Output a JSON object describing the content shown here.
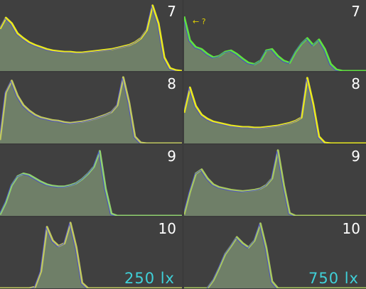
{
  "chart_data": [
    {
      "type": "area",
      "id": "L7",
      "label": "7",
      "light": "250 lx",
      "series_color": "#e8e820",
      "values": [
        0.62,
        0.78,
        0.7,
        0.55,
        0.48,
        0.42,
        0.38,
        0.35,
        0.32,
        0.3,
        0.29,
        0.28,
        0.28,
        0.27,
        0.27,
        0.28,
        0.29,
        0.3,
        0.31,
        0.32,
        0.34,
        0.36,
        0.38,
        0.42,
        0.48,
        0.6,
        0.96,
        0.7,
        0.2,
        0.04,
        0.01,
        0.0
      ]
    },
    {
      "type": "area",
      "id": "R7",
      "label": "7",
      "light": "750 lx",
      "annotation": "← ?",
      "series_color": "#60e040",
      "values": [
        0.8,
        0.45,
        0.35,
        0.32,
        0.25,
        0.2,
        0.22,
        0.28,
        0.3,
        0.25,
        0.18,
        0.12,
        0.1,
        0.15,
        0.3,
        0.32,
        0.22,
        0.15,
        0.12,
        0.28,
        0.4,
        0.48,
        0.38,
        0.46,
        0.32,
        0.1,
        0.02,
        0.0,
        0.0,
        0.0,
        0.0,
        0.0
      ]
    },
    {
      "type": "area",
      "id": "L8",
      "label": "8",
      "light": "250 lx",
      "series_color": "#c0c860",
      "values": [
        0.05,
        0.75,
        0.92,
        0.7,
        0.56,
        0.48,
        0.42,
        0.38,
        0.36,
        0.34,
        0.33,
        0.31,
        0.3,
        0.31,
        0.32,
        0.34,
        0.36,
        0.39,
        0.42,
        0.46,
        0.56,
        0.97,
        0.6,
        0.1,
        0.01,
        0.0,
        0.0,
        0.0,
        0.0,
        0.0,
        0.0,
        0.0
      ]
    },
    {
      "type": "area",
      "id": "R8",
      "label": "8",
      "light": "750 lx",
      "series_color": "#e8e820",
      "values": [
        0.45,
        0.82,
        0.55,
        0.42,
        0.36,
        0.32,
        0.3,
        0.28,
        0.26,
        0.25,
        0.24,
        0.24,
        0.23,
        0.23,
        0.24,
        0.25,
        0.26,
        0.28,
        0.3,
        0.33,
        0.38,
        0.96,
        0.58,
        0.1,
        0.01,
        0.0,
        0.0,
        0.0,
        0.0,
        0.0,
        0.0,
        0.0
      ]
    },
    {
      "type": "area",
      "id": "L9",
      "label": "9",
      "light": "250 lx",
      "series_color": "#90d070",
      "values": [
        0.02,
        0.2,
        0.45,
        0.58,
        0.62,
        0.6,
        0.55,
        0.5,
        0.46,
        0.44,
        0.43,
        0.43,
        0.45,
        0.48,
        0.54,
        0.62,
        0.72,
        0.95,
        0.4,
        0.03,
        0.0,
        0.0,
        0.0,
        0.0,
        0.0,
        0.0,
        0.0,
        0.0,
        0.0,
        0.0,
        0.0,
        0.0
      ]
    },
    {
      "type": "area",
      "id": "R9",
      "label": "9",
      "light": "750 lx",
      "series_color": "#a8c860",
      "values": [
        0.02,
        0.35,
        0.62,
        0.68,
        0.55,
        0.46,
        0.42,
        0.4,
        0.38,
        0.37,
        0.36,
        0.37,
        0.38,
        0.4,
        0.45,
        0.55,
        0.96,
        0.45,
        0.04,
        0.0,
        0.0,
        0.0,
        0.0,
        0.0,
        0.0,
        0.0,
        0.0,
        0.0,
        0.0,
        0.0,
        0.0,
        0.0
      ]
    },
    {
      "type": "area",
      "id": "L10",
      "label": "10",
      "light": "250 lx",
      "series_color": "#c0c860",
      "values": [
        0.0,
        0.0,
        0.0,
        0.0,
        0.0,
        0.0,
        0.02,
        0.25,
        0.9,
        0.7,
        0.62,
        0.66,
        0.96,
        0.6,
        0.08,
        0.0,
        0.0,
        0.0,
        0.0,
        0.0,
        0.0,
        0.0,
        0.0,
        0.0,
        0.0,
        0.0,
        0.0,
        0.0,
        0.0,
        0.0,
        0.0,
        0.0
      ]
    },
    {
      "type": "area",
      "id": "R10",
      "label": "10",
      "light": "750 lx",
      "series_color": "#a8c860",
      "values": [
        0.0,
        0.0,
        0.0,
        0.0,
        0.0,
        0.12,
        0.3,
        0.5,
        0.62,
        0.75,
        0.66,
        0.6,
        0.7,
        0.95,
        0.6,
        0.1,
        0.0,
        0.0,
        0.0,
        0.0,
        0.0,
        0.0,
        0.0,
        0.0,
        0.0,
        0.0,
        0.0,
        0.0,
        0.0,
        0.0,
        0.0,
        0.0
      ]
    }
  ],
  "column_labels": {
    "left": "250 lx",
    "right": "750 lx"
  }
}
